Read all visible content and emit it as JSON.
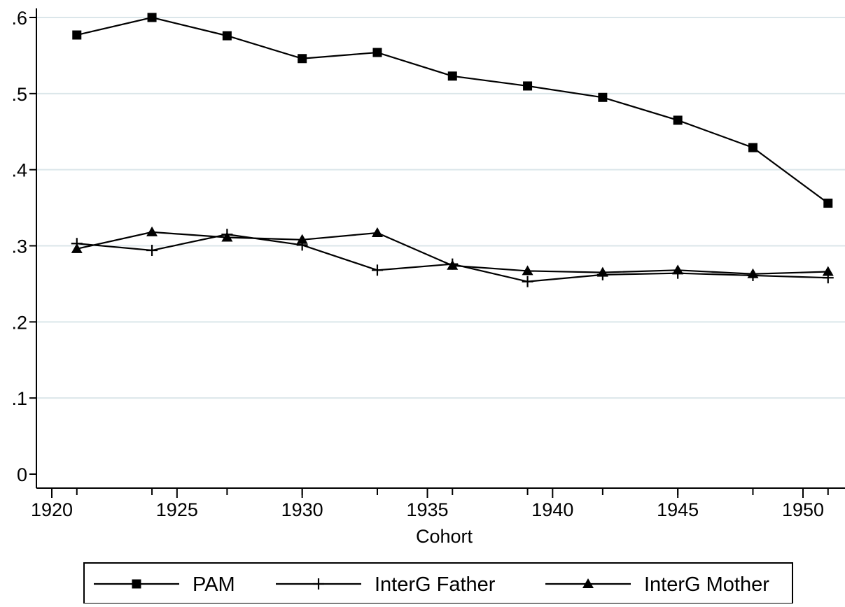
{
  "chart_data": {
    "type": "line",
    "title": "",
    "xlabel": "Cohort",
    "ylabel": "",
    "x": [
      1921,
      1924,
      1927,
      1930,
      1933,
      1936,
      1939,
      1942,
      1945,
      1948,
      1951
    ],
    "xlim": [
      1919,
      1952
    ],
    "ylim": [
      0,
      0.6
    ],
    "x_ticks": [
      1920,
      1925,
      1930,
      1935,
      1940,
      1945,
      1950
    ],
    "x_tick_labels": [
      "1920",
      "1925",
      "1930",
      "1935",
      "1940",
      "1945",
      "1950"
    ],
    "y_ticks": [
      0,
      0.1,
      0.2,
      0.3,
      0.4,
      0.5,
      0.6
    ],
    "y_tick_labels": [
      "0",
      ".1",
      ".2",
      ".3",
      ".4",
      ".5",
      ".6"
    ],
    "grid": true,
    "legend_position": "bottom",
    "series": [
      {
        "name": "PAM",
        "marker": "square",
        "values": [
          0.577,
          0.6,
          0.576,
          0.546,
          0.554,
          0.523,
          0.51,
          0.495,
          0.465,
          0.429,
          0.356
        ]
      },
      {
        "name": "InterG Father",
        "marker": "plus",
        "values": [
          0.303,
          0.294,
          0.315,
          0.301,
          0.268,
          0.276,
          0.253,
          0.262,
          0.264,
          0.261,
          0.258
        ]
      },
      {
        "name": "InterG Mother",
        "marker": "triangle",
        "values": [
          0.296,
          0.318,
          0.311,
          0.308,
          0.317,
          0.274,
          0.267,
          0.265,
          0.268,
          0.263,
          0.266
        ]
      }
    ],
    "colors": {
      "line": "#000000",
      "grid": "#dbe6ea",
      "background": "#ffffff"
    }
  }
}
